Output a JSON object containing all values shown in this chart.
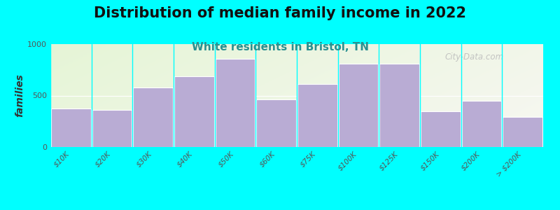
{
  "title": "Distribution of median family income in 2022",
  "subtitle": "White residents in Bristol, TN",
  "ylabel": "families",
  "categories": [
    "$10K",
    "$20K",
    "$30K",
    "$40K",
    "$50K",
    "$60K",
    "$75K",
    "$100K",
    "$125K",
    "$150K",
    "$200K",
    "> $200K"
  ],
  "values": [
    375,
    360,
    580,
    690,
    855,
    460,
    610,
    810,
    810,
    345,
    450,
    295
  ],
  "bar_color": "#b9acd4",
  "bar_edge_color": "#ffffff",
  "background_color": "#00ffff",
  "title_fontsize": 15,
  "subtitle_fontsize": 11,
  "subtitle_color": "#2a9090",
  "ylabel_fontsize": 10,
  "tick_label_fontsize": 7.5,
  "ylim": [
    0,
    1000
  ],
  "yticks": [
    0,
    500,
    1000
  ],
  "watermark": "City-Data.com"
}
